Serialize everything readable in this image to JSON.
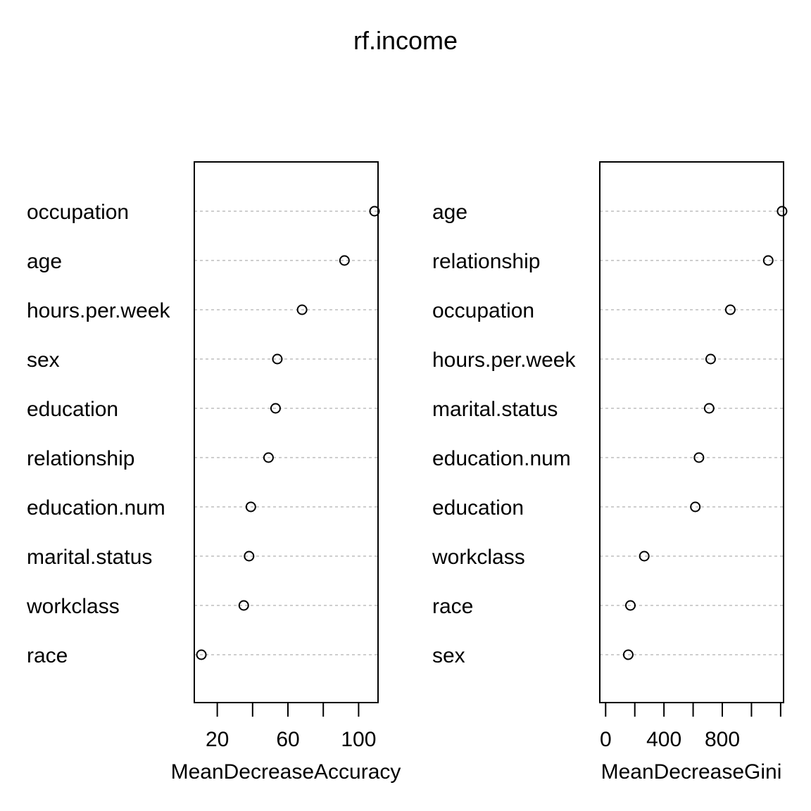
{
  "title": "rf.income",
  "chart_data": [
    {
      "type": "scatter",
      "xlabel": "MeanDecreaseAccuracy",
      "xlim": [
        7,
        111
      ],
      "xticks": [
        20,
        40,
        60,
        80,
        100
      ],
      "xtick_labels": [
        "20",
        "",
        "60",
        "",
        "100"
      ],
      "grid": "horizontal dotted lines",
      "points": [
        {
          "label": "occupation",
          "value": 109
        },
        {
          "label": "age",
          "value": 92
        },
        {
          "label": "hours.per.week",
          "value": 68
        },
        {
          "label": "sex",
          "value": 54
        },
        {
          "label": "education",
          "value": 53
        },
        {
          "label": "relationship",
          "value": 49
        },
        {
          "label": "education.num",
          "value": 39
        },
        {
          "label": "marital.status",
          "value": 38
        },
        {
          "label": "workclass",
          "value": 35
        },
        {
          "label": "race",
          "value": 11
        }
      ]
    },
    {
      "type": "scatter",
      "xlabel": "MeanDecreaseGini",
      "xlim": [
        -40,
        1220
      ],
      "xticks": [
        0,
        200,
        400,
        600,
        800,
        1000,
        1200
      ],
      "xtick_labels": [
        "0",
        "",
        "400",
        "",
        "800",
        "",
        ""
      ],
      "grid": "horizontal dotted lines",
      "points": [
        {
          "label": "age",
          "value": 1210
        },
        {
          "label": "relationship",
          "value": 1115
        },
        {
          "label": "occupation",
          "value": 855
        },
        {
          "label": "hours.per.week",
          "value": 720
        },
        {
          "label": "marital.status",
          "value": 710
        },
        {
          "label": "education.num",
          "value": 640
        },
        {
          "label": "education",
          "value": 615
        },
        {
          "label": "workclass",
          "value": 265
        },
        {
          "label": "race",
          "value": 170
        },
        {
          "label": "sex",
          "value": 155
        }
      ]
    }
  ]
}
